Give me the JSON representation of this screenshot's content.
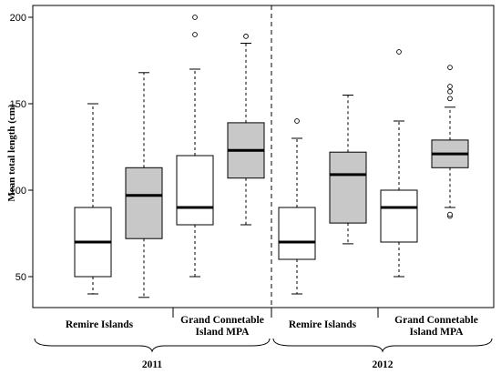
{
  "chart_data": {
    "type": "boxplot",
    "ylabel": "Mean total length (cm)",
    "ylim": [
      45,
      205
    ],
    "yticks": [
      50,
      100,
      150,
      200
    ],
    "grid": false,
    "legend": "none",
    "colors": {
      "white_box": "#ffffff",
      "grey_box": "#c8c8c8",
      "line": "#000000"
    },
    "boxes": [
      {
        "year": "2011",
        "site": "Remire Islands",
        "fill": "white",
        "min": 40,
        "q1": 50,
        "median": 70,
        "q3": 90,
        "max": 150,
        "outliers": []
      },
      {
        "year": "2011",
        "site": "Remire Islands",
        "fill": "grey",
        "min": 38,
        "q1": 72,
        "median": 97,
        "q3": 113,
        "max": 168,
        "outliers": []
      },
      {
        "year": "2011",
        "site": "Grand Connetable Island MPA",
        "fill": "white",
        "min": 50,
        "q1": 80,
        "median": 90,
        "q3": 120,
        "max": 170,
        "outliers": [
          190,
          200
        ]
      },
      {
        "year": "2011",
        "site": "Grand Connetable Island MPA",
        "fill": "grey",
        "min": 80,
        "q1": 107,
        "median": 123,
        "q3": 139,
        "max": 185,
        "outliers": [
          189
        ]
      },
      {
        "year": "2012",
        "site": "Remire Islands",
        "fill": "white",
        "min": 40,
        "q1": 60,
        "median": 70,
        "q3": 90,
        "max": 130,
        "outliers": [
          140
        ]
      },
      {
        "year": "2012",
        "site": "Remire Islands",
        "fill": "grey",
        "min": 69,
        "q1": 81,
        "median": 109,
        "q3": 122,
        "max": 155,
        "outliers": []
      },
      {
        "year": "2012",
        "site": "Grand Connetable Island MPA",
        "fill": "white",
        "min": 50,
        "q1": 70,
        "median": 90,
        "q3": 100,
        "max": 140,
        "outliers": [
          180
        ]
      },
      {
        "year": "2012",
        "site": "Grand Connetable Island MPA",
        "fill": "grey",
        "min": 90,
        "q1": 113,
        "median": 121,
        "q3": 129,
        "max": 148,
        "outliers": [
          85,
          86,
          153,
          157,
          160,
          171
        ]
      }
    ],
    "groups": [
      {
        "lines": [
          "Remire Islands"
        ]
      },
      {
        "lines": [
          "Grand Connetable",
          "Island MPA"
        ]
      },
      {
        "lines": [
          "Remire Islands"
        ]
      },
      {
        "lines": [
          "Grand Connetable",
          "Island MPA"
        ]
      }
    ],
    "years": [
      "2011",
      "2012"
    ]
  }
}
